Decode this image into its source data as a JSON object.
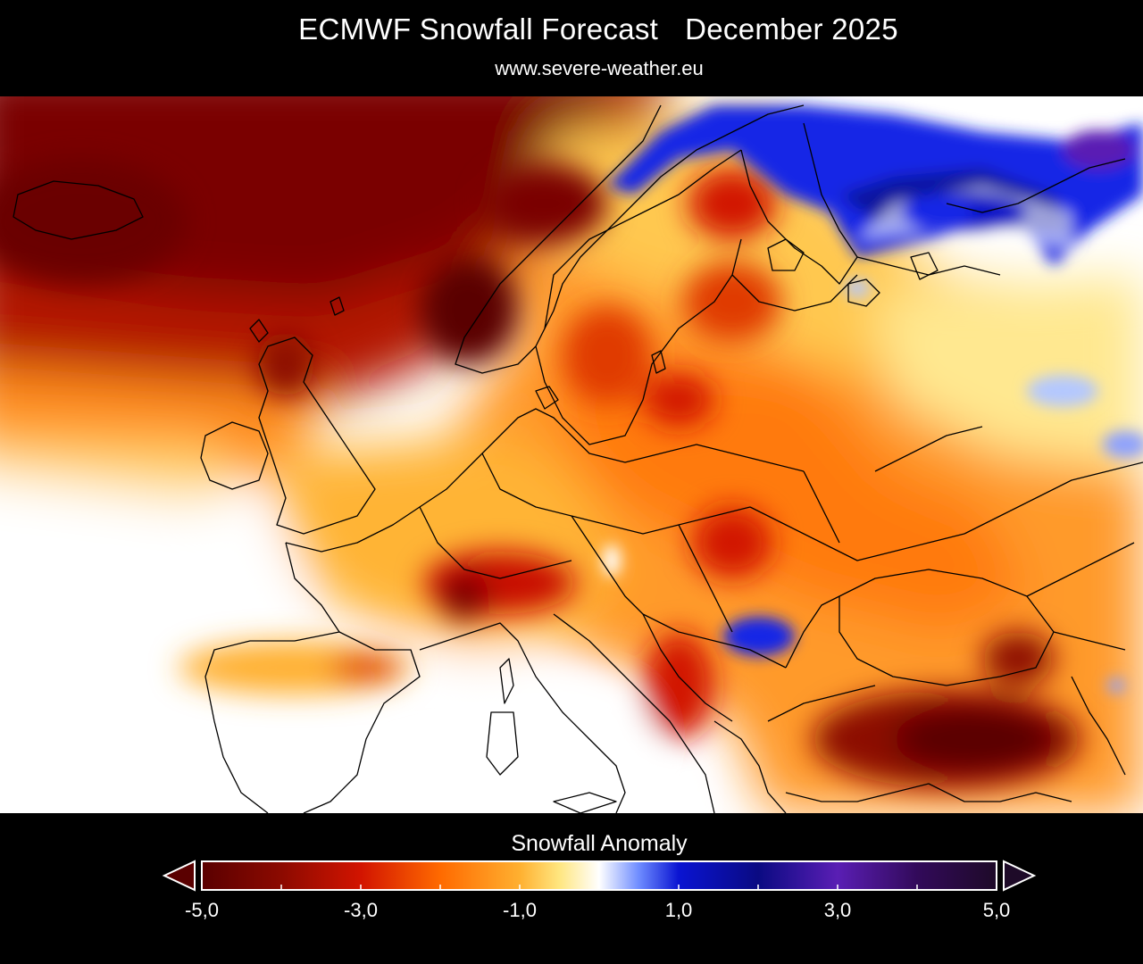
{
  "header": {
    "title_left": "ECMWF Snowfall Forecast",
    "title_right": "December 2025",
    "subtitle": "www.severe-weather.eu"
  },
  "legend": {
    "title": "Snowfall Anomaly",
    "range": [
      -5.0,
      5.0
    ],
    "tick_labels": [
      "-5,0",
      "-3,0",
      "-1,0",
      "1,0",
      "3,0",
      "5,0"
    ],
    "gradient_stops": [
      {
        "value": -5.0,
        "color": "#5a0000"
      },
      {
        "value": -4.0,
        "color": "#8c0a00"
      },
      {
        "value": -3.0,
        "color": "#d21400"
      },
      {
        "value": -2.0,
        "color": "#ff6a00"
      },
      {
        "value": -1.0,
        "color": "#ffb030"
      },
      {
        "value": -0.5,
        "color": "#ffe680"
      },
      {
        "value": 0.0,
        "color": "#ffffff"
      },
      {
        "value": 0.5,
        "color": "#6e8cff"
      },
      {
        "value": 1.0,
        "color": "#0a14d2"
      },
      {
        "value": 2.0,
        "color": "#0a0a82"
      },
      {
        "value": 3.0,
        "color": "#5a1eb4"
      },
      {
        "value": 4.0,
        "color": "#320a5a"
      },
      {
        "value": 5.0,
        "color": "#1e0a28"
      }
    ],
    "low_arrow_color": "#5a0000",
    "high_arrow_color": "#1e0a28"
  },
  "map": {
    "region": "Europe",
    "variable": "Snowfall Anomaly",
    "colors": {
      "background": "#ffffff",
      "dark_red": "#5a0000",
      "red": "#d21400",
      "orange": "#ff7a10",
      "light_orange": "#ffb030",
      "yellow": "#ffe680",
      "blue": "#1428e6",
      "light_blue": "#b4c8ff",
      "purple": "#5a1eb4",
      "borders": "#000000"
    }
  }
}
